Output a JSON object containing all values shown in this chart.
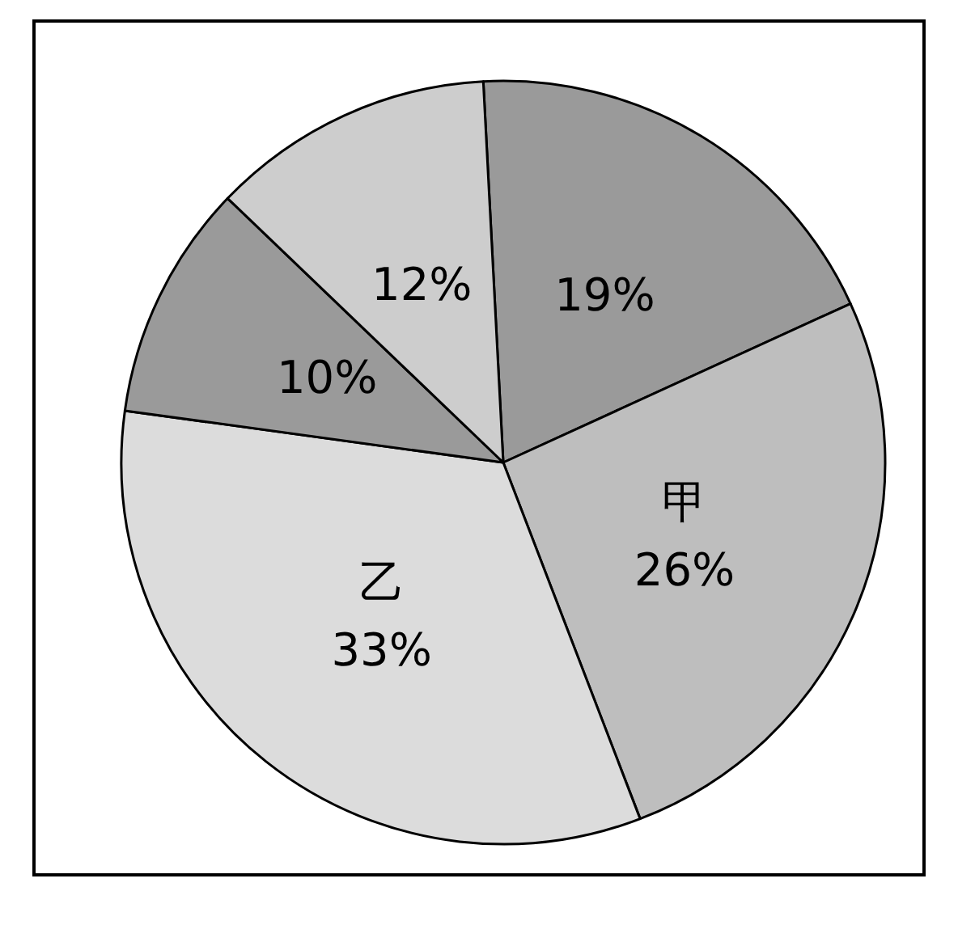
{
  "chart_data": {
    "type": "pie",
    "categories": [
      null,
      "甲",
      "乙",
      null,
      null
    ],
    "values": [
      19,
      26,
      33,
      10,
      12
    ],
    "colors": [
      "#9a9a9a",
      "#bebebe",
      "#dcdcdc",
      "#9a9a9a",
      "#cdcdcd"
    ],
    "value_labels": [
      "19%",
      "26%",
      "33%",
      "10%",
      "12%"
    ]
  }
}
